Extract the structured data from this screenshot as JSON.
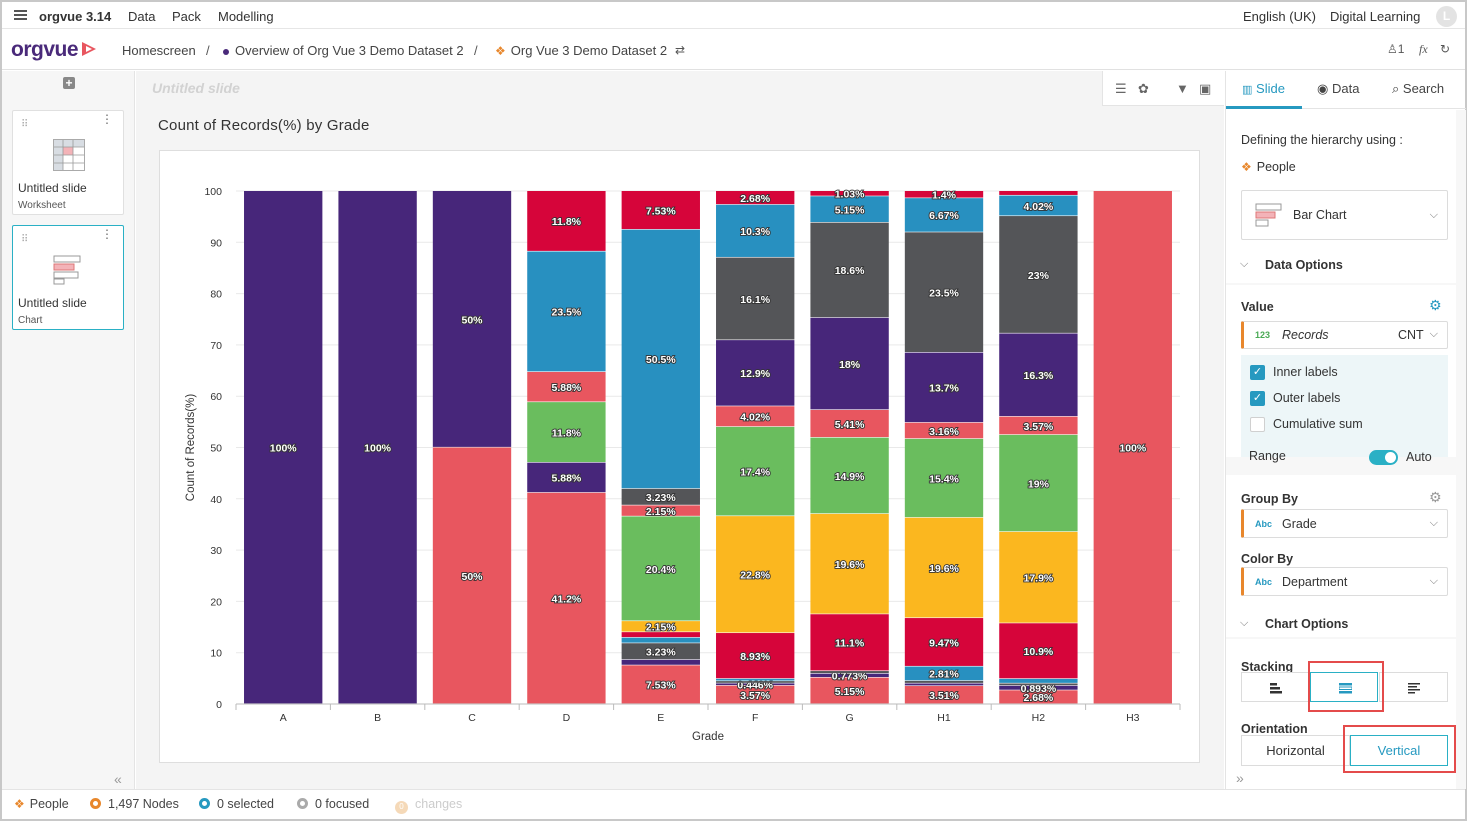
{
  "menubar": {
    "app_name": "orgvue 3.14",
    "menus": [
      "Data",
      "Pack",
      "Modelling"
    ],
    "language": "English (UK)",
    "workspace": "Digital Learning",
    "avatar_letter": "L"
  },
  "breadcrumb": {
    "logo": "orgvue",
    "home": "Homescreen",
    "sep": "/",
    "overview": "Overview of Org Vue 3 Demo Dataset 2",
    "dataset": "Org Vue 3 Demo Dataset 2",
    "user_count": "1",
    "fx_label": "fx"
  },
  "slides": {
    "add_label": "+",
    "items": [
      {
        "title": "Untitled slide",
        "type": "Worksheet"
      },
      {
        "title": "Untitled slide",
        "type": "Chart"
      }
    ]
  },
  "center": {
    "slide_title": "Untitled slide",
    "chart_title": "Count of Records(%) by Grade"
  },
  "chart_data": {
    "type": "bar",
    "stacking": "stacked-100",
    "title": "Count of Records(%) by Grade",
    "xlabel": "Grade",
    "ylabel": "Count of Records(%)",
    "ylim": [
      0,
      100
    ],
    "yticks": [
      0,
      10,
      20,
      30,
      40,
      50,
      60,
      70,
      80,
      90,
      100
    ],
    "categories": [
      "A",
      "B",
      "C",
      "D",
      "E",
      "F",
      "G",
      "H1",
      "H2",
      "H3"
    ],
    "colors": {
      "purple": "#47267a",
      "salmon": "#e8565f",
      "green": "#6abd5e",
      "yellow": "#fbb71f",
      "crimson": "#d6053a",
      "blue": "#2890c0",
      "gray": "#545558"
    },
    "stacks": [
      [
        {
          "c": "purple",
          "v": 100,
          "l": "100%"
        }
      ],
      [
        {
          "c": "purple",
          "v": 100,
          "l": "100%"
        }
      ],
      [
        {
          "c": "salmon",
          "v": 50,
          "l": "50%"
        },
        {
          "c": "purple",
          "v": 50,
          "l": "50%"
        }
      ],
      [
        {
          "c": "salmon",
          "v": 41.2,
          "l": "41.2%"
        },
        {
          "c": "purple",
          "v": 5.88,
          "l": "5.88%"
        },
        {
          "c": "green",
          "v": 11.8,
          "l": "11.8%"
        },
        {
          "c": "salmon",
          "v": 5.88,
          "l": "5.88%"
        },
        {
          "c": "blue",
          "v": 23.5,
          "l": "23.5%"
        },
        {
          "c": "crimson",
          "v": 11.8,
          "l": "11.8%"
        }
      ],
      [
        {
          "c": "salmon",
          "v": 7.53,
          "l": "7.53%"
        },
        {
          "c": "purple",
          "v": 1.08,
          "l": ""
        },
        {
          "c": "gray",
          "v": 3.23,
          "l": "3.23%"
        },
        {
          "c": "blue",
          "v": 1.08,
          "l": ""
        },
        {
          "c": "crimson",
          "v": 1.08,
          "l": ""
        },
        {
          "c": "yellow",
          "v": 2.15,
          "l": "2.15%"
        },
        {
          "c": "green",
          "v": 20.4,
          "l": "20.4%"
        },
        {
          "c": "salmon",
          "v": 2.15,
          "l": "2.15%"
        },
        {
          "c": "gray",
          "v": 3.23,
          "l": "3.23%"
        },
        {
          "c": "blue",
          "v": 50.5,
          "l": "50.5%"
        },
        {
          "c": "crimson",
          "v": 7.53,
          "l": "7.53%"
        }
      ],
      [
        {
          "c": "salmon",
          "v": 3.57,
          "l": "3.57%"
        },
        {
          "c": "purple",
          "v": 0.446,
          "l": "0.446%"
        },
        {
          "c": "gray",
          "v": 0.446,
          "l": ""
        },
        {
          "c": "blue",
          "v": 0.446,
          "l": ""
        },
        {
          "c": "crimson",
          "v": 8.93,
          "l": "8.93%"
        },
        {
          "c": "yellow",
          "v": 22.8,
          "l": "22.8%"
        },
        {
          "c": "green",
          "v": 17.4,
          "l": "17.4%"
        },
        {
          "c": "salmon",
          "v": 4.02,
          "l": "4.02%"
        },
        {
          "c": "purple",
          "v": 12.9,
          "l": "12.9%"
        },
        {
          "c": "gray",
          "v": 16.1,
          "l": "16.1%"
        },
        {
          "c": "blue",
          "v": 10.3,
          "l": "10.3%"
        },
        {
          "c": "crimson",
          "v": 2.68,
          "l": "2.68%"
        }
      ],
      [
        {
          "c": "salmon",
          "v": 5.15,
          "l": "5.15%"
        },
        {
          "c": "purple",
          "v": 0.773,
          "l": "0.773%"
        },
        {
          "c": "gray",
          "v": 0.515,
          "l": ""
        },
        {
          "c": "crimson",
          "v": 11.1,
          "l": "11.1%"
        },
        {
          "c": "yellow",
          "v": 19.6,
          "l": "19.6%"
        },
        {
          "c": "green",
          "v": 14.9,
          "l": "14.9%"
        },
        {
          "c": "salmon",
          "v": 5.41,
          "l": "5.41%"
        },
        {
          "c": "purple",
          "v": 18,
          "l": "18%"
        },
        {
          "c": "gray",
          "v": 18.6,
          "l": "18.6%"
        },
        {
          "c": "blue",
          "v": 5.15,
          "l": "5.15%"
        },
        {
          "c": "crimson",
          "v": 1.03,
          "l": "1.03%"
        }
      ],
      [
        {
          "c": "salmon",
          "v": 3.51,
          "l": "3.51%"
        },
        {
          "c": "purple",
          "v": 0.5,
          "l": ""
        },
        {
          "c": "gray",
          "v": 0.5,
          "l": ""
        },
        {
          "c": "blue",
          "v": 2.81,
          "l": "2.81%"
        },
        {
          "c": "crimson",
          "v": 9.47,
          "l": "9.47%"
        },
        {
          "c": "yellow",
          "v": 19.6,
          "l": "19.6%"
        },
        {
          "c": "green",
          "v": 15.4,
          "l": "15.4%"
        },
        {
          "c": "salmon",
          "v": 3.16,
          "l": "3.16%"
        },
        {
          "c": "purple",
          "v": 13.7,
          "l": "13.7%"
        },
        {
          "c": "gray",
          "v": 23.5,
          "l": "23.5%"
        },
        {
          "c": "blue",
          "v": 6.67,
          "l": "6.67%"
        },
        {
          "c": "crimson",
          "v": 1.4,
          "l": "1.4%"
        }
      ],
      [
        {
          "c": "salmon",
          "v": 2.68,
          "l": "2.68%"
        },
        {
          "c": "purple",
          "v": 0.893,
          "l": "0.893%"
        },
        {
          "c": "gray",
          "v": 0.45,
          "l": ""
        },
        {
          "c": "blue",
          "v": 0.893,
          "l": ""
        },
        {
          "c": "crimson",
          "v": 10.9,
          "l": "10.9%"
        },
        {
          "c": "yellow",
          "v": 17.9,
          "l": "17.9%"
        },
        {
          "c": "green",
          "v": 19,
          "l": "19%"
        },
        {
          "c": "salmon",
          "v": 3.57,
          "l": "3.57%"
        },
        {
          "c": "purple",
          "v": 16.3,
          "l": "16.3%"
        },
        {
          "c": "gray",
          "v": 23,
          "l": "23%"
        },
        {
          "c": "blue",
          "v": 4.02,
          "l": "4.02%"
        },
        {
          "c": "crimson",
          "v": 0.89,
          "l": ""
        }
      ],
      [
        {
          "c": "salmon",
          "v": 100,
          "l": "100%"
        }
      ]
    ]
  },
  "right_panel": {
    "tabs": [
      "Slide",
      "Data",
      "Search"
    ],
    "hierarchy_label": "Defining the hierarchy using :",
    "hierarchy_value": "People",
    "chart_type": "Bar Chart",
    "data_options_label": "Data Options",
    "value_label": "Value",
    "value_field_badge": "123",
    "value_field": "Records",
    "value_agg": "CNT",
    "inner_labels": "Inner labels",
    "outer_labels": "Outer labels",
    "cumulative_sum": "Cumulative sum",
    "range_label": "Range",
    "range_value": "Auto",
    "group_by_label": "Group By",
    "group_by_badge": "Abc",
    "group_by_value": "Grade",
    "color_by_label": "Color By",
    "color_by_badge": "Abc",
    "color_by_value": "Department",
    "chart_options_label": "Chart Options",
    "stacking_label": "Stacking",
    "orientation_label": "Orientation",
    "orientation_options": [
      "Horizontal",
      "Vertical"
    ]
  },
  "footer": {
    "dataset": "People",
    "nodes": "1,497 Nodes",
    "selected": "0 selected",
    "focused": "0 focused",
    "changes_count": "0",
    "changes": "changes"
  }
}
